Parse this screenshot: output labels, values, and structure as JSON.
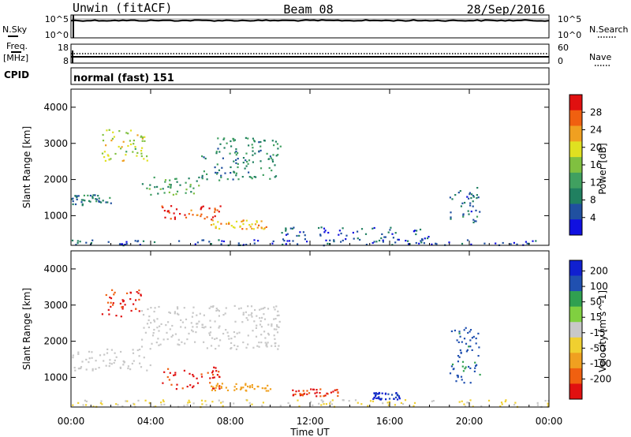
{
  "header": {
    "station": "Unwin (fitACF)",
    "beam": "Beam 08",
    "date": "28/Sep/2016"
  },
  "noise_panel": {
    "left_label": "N.Sky",
    "right_label": "N.Search",
    "left_ticks": [
      "10^5",
      "10^0"
    ],
    "right_ticks": [
      "10^5",
      "10^0"
    ]
  },
  "freq_panel": {
    "left_label_1": "Freq.",
    "left_label_2": "[MHz]",
    "right_label": "Nave",
    "left_ticks": [
      "18",
      "8"
    ],
    "right_ticks": [
      "60",
      "0"
    ]
  },
  "cpid_panel": {
    "label": "CPID",
    "value": "normal (fast) 151"
  },
  "x_axis": {
    "label": "Time UT",
    "ticks": [
      "00:00",
      "04:00",
      "08:00",
      "12:00",
      "16:00",
      "20:00",
      "00:00"
    ]
  },
  "chart_data": [
    {
      "type": "heatmap",
      "title": "",
      "xlabel": "Time UT",
      "ylabel": "Slant Range [km]",
      "xlim": [
        0,
        24
      ],
      "ylim": [
        180,
        4500
      ],
      "yticks": [
        "1000",
        "2000",
        "3000",
        "4000"
      ],
      "colorbar": {
        "label": "Power [dB]",
        "ticks": [
          "4",
          "8",
          "12",
          "16",
          "20",
          "24",
          "28"
        ],
        "colors": [
          "#1010e0",
          "#2050a0",
          "#208060",
          "#40a060",
          "#80c040",
          "#e0e020",
          "#f0a020",
          "#f06010",
          "#e01010"
        ]
      },
      "regions": [
        {
          "t0": 0.0,
          "t1": 2.0,
          "r0": 1300,
          "r1": 1600,
          "value": 8
        },
        {
          "t0": 1.5,
          "t1": 4.0,
          "r0": 2500,
          "r1": 3400,
          "value": 18
        },
        {
          "t0": 3.5,
          "t1": 6.5,
          "r0": 1600,
          "r1": 2100,
          "value": 12
        },
        {
          "t0": 4.5,
          "t1": 7.5,
          "r0": 850,
          "r1": 1300,
          "value": 28
        },
        {
          "t0": 7.0,
          "t1": 10.0,
          "r0": 650,
          "r1": 900,
          "value": 22
        },
        {
          "t0": 6.5,
          "t1": 10.5,
          "r0": 2000,
          "r1": 3200,
          "value": 10
        },
        {
          "t0": 10.5,
          "t1": 18.0,
          "r0": 300,
          "r1": 700,
          "value": 6
        },
        {
          "t0": 19.0,
          "t1": 20.5,
          "r0": 800,
          "r1": 1800,
          "value": 7
        },
        {
          "t0": 0.0,
          "t1": 24.0,
          "r0": 200,
          "r1": 350,
          "value": 5
        }
      ]
    },
    {
      "type": "heatmap",
      "title": "",
      "xlabel": "Time UT",
      "ylabel": "Slant Range [km]",
      "xlim": [
        0,
        24
      ],
      "ylim": [
        180,
        4500
      ],
      "yticks": [
        "1000",
        "2000",
        "3000",
        "4000"
      ],
      "colorbar": {
        "label": "Velocity [m s^-1]",
        "ticks": [
          "200",
          "100",
          "50",
          "15",
          "-15",
          "-50",
          "-100",
          "-200"
        ],
        "colors": [
          "#1020d0",
          "#2050b0",
          "#30a050",
          "#80d040",
          "#c8c8c8",
          "#f0d030",
          "#f0a020",
          "#f06010",
          "#e01010"
        ]
      },
      "regions": [
        {
          "t0": 1.5,
          "t1": 3.5,
          "r0": 2700,
          "r1": 3500,
          "value": -200
        },
        {
          "t0": 0.0,
          "t1": 4.0,
          "r0": 1200,
          "r1": 1800,
          "value": 0
        },
        {
          "t0": 3.5,
          "t1": 10.5,
          "r0": 1800,
          "r1": 3000,
          "value": 0
        },
        {
          "t0": 4.5,
          "t1": 7.5,
          "r0": 700,
          "r1": 1300,
          "value": -200
        },
        {
          "t0": 7.0,
          "t1": 10.0,
          "r0": 650,
          "r1": 850,
          "value": -100
        },
        {
          "t0": 11.0,
          "t1": 13.5,
          "r0": 500,
          "r1": 700,
          "value": -200
        },
        {
          "t0": 15.0,
          "t1": 16.5,
          "r0": 400,
          "r1": 600,
          "value": 200
        },
        {
          "t0": 19.0,
          "t1": 20.5,
          "r0": 800,
          "r1": 2400,
          "value": 150
        },
        {
          "t0": 0.0,
          "t1": 24.0,
          "r0": 200,
          "r1": 400,
          "value": -30
        }
      ]
    }
  ]
}
